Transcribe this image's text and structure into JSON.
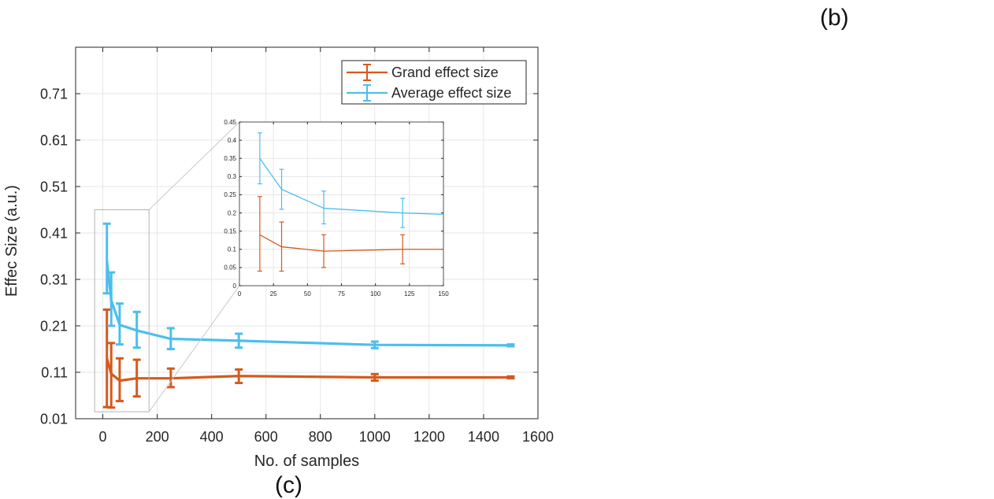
{
  "panel_labels": {
    "b": "(b)",
    "c": "(c)"
  },
  "chart_data": [
    {
      "id": "main",
      "type": "line",
      "title": "",
      "xlabel": "No. of samples",
      "ylabel": "Effec Size (a.u.)",
      "xlim": [
        -100,
        1600
      ],
      "ylim": [
        0.01,
        0.81
      ],
      "xticks": [
        0,
        200,
        400,
        600,
        800,
        1000,
        1200,
        1400,
        1600
      ],
      "xtick_labels": [
        "0",
        "200",
        "400",
        "600",
        "800",
        "1000",
        "1200",
        "1400",
        "1600"
      ],
      "yticks": [
        0.01,
        0.11,
        0.21,
        0.31,
        0.41,
        0.51,
        0.61,
        0.71
      ],
      "ytick_labels": [
        "0.01",
        "0.11",
        "0.21",
        "0.31",
        "0.41",
        "0.51",
        "0.61",
        "0.71"
      ],
      "grid": true,
      "legend_position": "top-right",
      "series": [
        {
          "name": "Grand effect size",
          "color": "#D45A1E",
          "x": [
            15,
            31,
            62,
            125,
            250,
            500,
            1000,
            1500
          ],
          "y": [
            0.14,
            0.107,
            0.092,
            0.097,
            0.097,
            0.102,
            0.099,
            0.099
          ],
          "err_low": [
            0.035,
            0.034,
            0.048,
            0.058,
            0.078,
            0.087,
            0.092,
            0.097
          ],
          "err_high": [
            0.245,
            0.173,
            0.14,
            0.137,
            0.118,
            0.116,
            0.106,
            0.101
          ]
        },
        {
          "name": "Average effect size",
          "color": "#4DBEEE",
          "x": [
            15,
            31,
            62,
            125,
            250,
            500,
            1000,
            1500
          ],
          "y": [
            0.35,
            0.265,
            0.212,
            0.2,
            0.182,
            0.178,
            0.169,
            0.168
          ],
          "err_low": [
            0.28,
            0.21,
            0.17,
            0.163,
            0.16,
            0.163,
            0.162,
            0.166
          ],
          "err_high": [
            0.43,
            0.325,
            0.258,
            0.24,
            0.205,
            0.193,
            0.176,
            0.17
          ]
        }
      ]
    },
    {
      "id": "inset",
      "type": "line",
      "title": "",
      "xlim": [
        0,
        150
      ],
      "ylim": [
        0,
        0.45
      ],
      "xticks": [
        0,
        25,
        50,
        75,
        100,
        125,
        150
      ],
      "xtick_labels": [
        "0",
        "25",
        "50",
        "75",
        "100",
        "125",
        "150"
      ],
      "yticks": [
        0,
        0.05,
        0.1,
        0.15,
        0.2,
        0.25,
        0.3,
        0.35,
        0.4,
        0.45
      ],
      "ytick_labels": [
        "0",
        "0.05",
        "0.1",
        "0.15",
        "0.2",
        "0.25",
        "0.3",
        "0.35",
        "0.4",
        "0.45"
      ],
      "grid": true,
      "series": [
        {
          "name": "Grand effect size",
          "color": "#D45A1E",
          "x": [
            15,
            31,
            62,
            120,
            150
          ],
          "y": [
            0.14,
            0.107,
            0.095,
            0.1,
            0.1
          ],
          "err_x": [
            15,
            31,
            62,
            120
          ],
          "err_low": [
            0.04,
            0.04,
            0.05,
            0.06
          ],
          "err_high": [
            0.245,
            0.175,
            0.14,
            0.14
          ]
        },
        {
          "name": "Average effect size",
          "color": "#4DBEEE",
          "x": [
            15,
            31,
            62,
            120,
            150
          ],
          "y": [
            0.35,
            0.265,
            0.213,
            0.2,
            0.196
          ],
          "err_x": [
            15,
            31,
            62,
            120
          ],
          "err_low": [
            0.28,
            0.21,
            0.17,
            0.16
          ],
          "err_high": [
            0.42,
            0.32,
            0.26,
            0.24
          ]
        }
      ]
    }
  ]
}
